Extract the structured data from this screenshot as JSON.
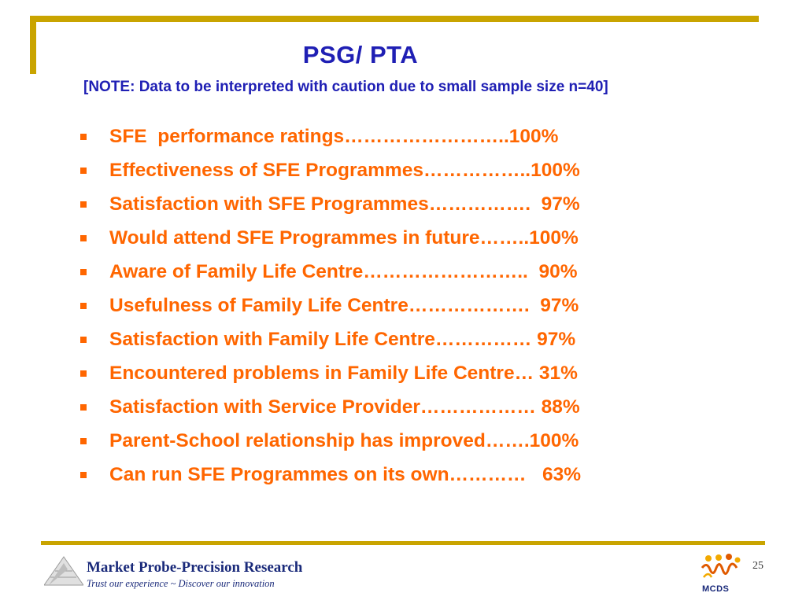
{
  "slide": {
    "title": "PSG/ PTA",
    "note": "[NOTE:  Data to be interpreted with caution due to small sample size n=40]",
    "items": [
      "SFE  performance ratings……………………..100%",
      "Effectiveness of SFE Programmes……………..100%",
      "Satisfaction with SFE Programmes…………….  97%",
      "Would attend SFE Programmes in future……..100%",
      "Aware of Family Life Centre……………………..  90%",
      "Usefulness of Family Life Centre……………….  97%",
      "Satisfaction with Family Life Centre…………… 97%",
      "Encountered problems in Family Life Centre… 31%",
      "Satisfaction with Service Provider……………… 88%",
      "Parent-School relationship has improved…….100%",
      "Can run SFE Programmes on its own…………   63%"
    ],
    "page_number": "25"
  },
  "footer": {
    "company": "Market Probe-Precision Research",
    "tagline": "Trust our experience ~ Discover our innovation",
    "partner_logo_text": "MCDS"
  },
  "colors": {
    "accent_gold": "#c9a400",
    "title_blue": "#1f1fb4",
    "item_orange": "#ff6600",
    "footer_navy": "#1a2a7a"
  }
}
